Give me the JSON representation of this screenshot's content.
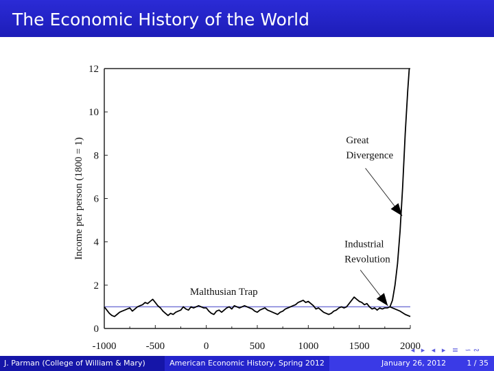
{
  "slide": {
    "title": "The Economic History of the World"
  },
  "footer": {
    "author": "J. Parman  (College of William & Mary)",
    "course": "American Economic History, Spring 2012",
    "date": "January 26, 2012",
    "page": "1 / 35"
  },
  "nav": {
    "symbols": "◂ ▸ ◂ ▸ ≡ ∽∾"
  },
  "chart_data": {
    "type": "line",
    "ylabel": "Income per person (1800 = 1)",
    "xlabel": "",
    "xlim": [
      -1000,
      2000
    ],
    "ylim": [
      0,
      12
    ],
    "x_ticks": [
      "-1000",
      "-500",
      "0",
      "500",
      "1000",
      "1500",
      "2000"
    ],
    "y_ticks": [
      "0",
      "2",
      "4",
      "6",
      "8",
      "10",
      "12"
    ],
    "reference_line": {
      "y": 1,
      "color": "#7a7ad8"
    },
    "series": [
      {
        "color": "#000000",
        "points": [
          [
            -1000,
            1.0
          ],
          [
            -975,
            0.85
          ],
          [
            -950,
            0.7
          ],
          [
            -925,
            0.6
          ],
          [
            -900,
            0.55
          ],
          [
            -875,
            0.65
          ],
          [
            -850,
            0.75
          ],
          [
            -825,
            0.8
          ],
          [
            -800,
            0.85
          ],
          [
            -775,
            0.9
          ],
          [
            -750,
            0.95
          ],
          [
            -725,
            0.8
          ],
          [
            -700,
            0.9
          ],
          [
            -675,
            1.0
          ],
          [
            -650,
            1.05
          ],
          [
            -625,
            1.1
          ],
          [
            -600,
            1.2
          ],
          [
            -575,
            1.15
          ],
          [
            -550,
            1.25
          ],
          [
            -525,
            1.35
          ],
          [
            -500,
            1.2
          ],
          [
            -475,
            1.05
          ],
          [
            -450,
            0.95
          ],
          [
            -425,
            0.8
          ],
          [
            -400,
            0.7
          ],
          [
            -375,
            0.6
          ],
          [
            -350,
            0.7
          ],
          [
            -325,
            0.65
          ],
          [
            -300,
            0.75
          ],
          [
            -275,
            0.8
          ],
          [
            -250,
            0.85
          ],
          [
            -225,
            1.0
          ],
          [
            -200,
            0.9
          ],
          [
            -175,
            0.85
          ],
          [
            -150,
            1.0
          ],
          [
            -125,
            0.95
          ],
          [
            -100,
            1.0
          ],
          [
            -75,
            1.05
          ],
          [
            -50,
            1.0
          ],
          [
            -25,
            0.95
          ],
          [
            0,
            0.95
          ],
          [
            25,
            0.8
          ],
          [
            50,
            0.7
          ],
          [
            75,
            0.65
          ],
          [
            100,
            0.8
          ],
          [
            125,
            0.85
          ],
          [
            150,
            0.75
          ],
          [
            175,
            0.85
          ],
          [
            200,
            0.95
          ],
          [
            225,
            1.0
          ],
          [
            250,
            0.9
          ],
          [
            275,
            1.05
          ],
          [
            300,
            1.0
          ],
          [
            325,
            0.95
          ],
          [
            350,
            1.0
          ],
          [
            375,
            1.05
          ],
          [
            400,
            1.0
          ],
          [
            425,
            0.95
          ],
          [
            450,
            0.9
          ],
          [
            475,
            0.8
          ],
          [
            500,
            0.75
          ],
          [
            525,
            0.85
          ],
          [
            550,
            0.9
          ],
          [
            575,
            0.95
          ],
          [
            600,
            0.85
          ],
          [
            625,
            0.8
          ],
          [
            650,
            0.75
          ],
          [
            675,
            0.7
          ],
          [
            700,
            0.65
          ],
          [
            725,
            0.75
          ],
          [
            750,
            0.8
          ],
          [
            775,
            0.9
          ],
          [
            800,
            0.95
          ],
          [
            825,
            1.0
          ],
          [
            850,
            1.05
          ],
          [
            875,
            1.1
          ],
          [
            900,
            1.2
          ],
          [
            925,
            1.25
          ],
          [
            950,
            1.3
          ],
          [
            975,
            1.2
          ],
          [
            1000,
            1.25
          ],
          [
            1025,
            1.15
          ],
          [
            1050,
            1.05
          ],
          [
            1075,
            0.9
          ],
          [
            1100,
            0.95
          ],
          [
            1125,
            0.85
          ],
          [
            1150,
            0.75
          ],
          [
            1175,
            0.7
          ],
          [
            1200,
            0.65
          ],
          [
            1225,
            0.7
          ],
          [
            1250,
            0.8
          ],
          [
            1275,
            0.85
          ],
          [
            1300,
            0.95
          ],
          [
            1325,
            1.0
          ],
          [
            1350,
            0.95
          ],
          [
            1375,
            1.0
          ],
          [
            1400,
            1.15
          ],
          [
            1425,
            1.3
          ],
          [
            1450,
            1.45
          ],
          [
            1475,
            1.35
          ],
          [
            1500,
            1.25
          ],
          [
            1525,
            1.2
          ],
          [
            1550,
            1.1
          ],
          [
            1575,
            1.15
          ],
          [
            1600,
            1.0
          ],
          [
            1625,
            0.9
          ],
          [
            1650,
            0.95
          ],
          [
            1675,
            0.85
          ],
          [
            1700,
            0.95
          ],
          [
            1725,
            0.9
          ],
          [
            1750,
            0.95
          ],
          [
            1775,
            0.95
          ],
          [
            1800,
            1.0
          ],
          [
            1825,
            1.3
          ],
          [
            1850,
            2.0
          ],
          [
            1875,
            3.0
          ],
          [
            1900,
            4.5
          ],
          [
            1925,
            6.5
          ],
          [
            1950,
            9.0
          ],
          [
            1975,
            11.0
          ],
          [
            1990,
            12.0
          ]
        ]
      },
      {
        "color": "#000000",
        "points": [
          [
            1800,
            1.0
          ],
          [
            1850,
            0.9
          ],
          [
            1900,
            0.8
          ],
          [
            1950,
            0.65
          ],
          [
            2000,
            0.55
          ]
        ]
      }
    ],
    "annotations": [
      {
        "text": [
          "Malthusian Trap"
        ]
      },
      {
        "text": [
          "Industrial",
          "Revolution"
        ]
      },
      {
        "text": [
          "Great",
          "Divergence"
        ]
      }
    ]
  }
}
